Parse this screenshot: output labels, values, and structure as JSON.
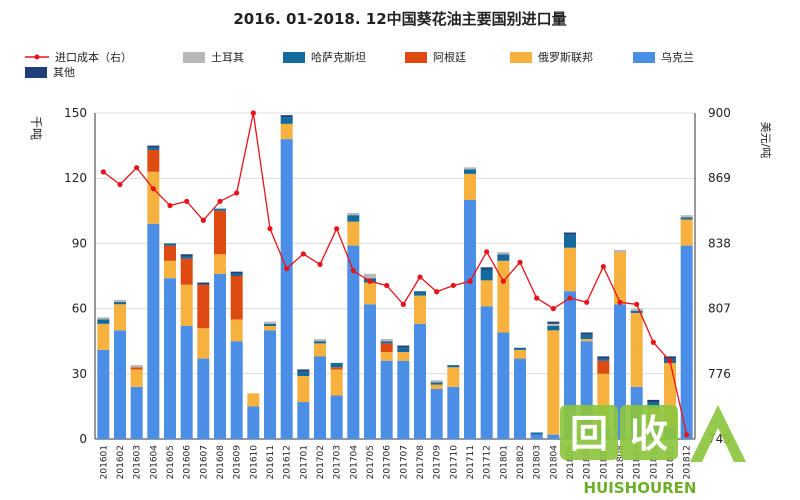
{
  "chart_data": {
    "type": "bar",
    "title": "2016. 01-2018. 12中国葵花油主要国别进口量",
    "ylabel_left": "千吨",
    "ylabel_right": "美元/吨",
    "ylim_left": [
      0,
      150
    ],
    "ylim_right": [
      745,
      900
    ],
    "yticks_left": [
      0,
      30,
      60,
      90,
      120,
      150
    ],
    "yticks_right": [
      745,
      776,
      807,
      838,
      869,
      900
    ],
    "categories": [
      "201601",
      "201602",
      "201603",
      "201604",
      "201605",
      "201606",
      "201607",
      "201608",
      "201609",
      "201610",
      "201611",
      "201612",
      "201701",
      "201702",
      "201703",
      "201704",
      "201705",
      "201706",
      "201707",
      "201708",
      "201709",
      "201710",
      "201711",
      "201712",
      "201801",
      "201802",
      "201803",
      "201804",
      "201805",
      "201806",
      "201807",
      "201808",
      "201809",
      "201810",
      "201811",
      "201812"
    ],
    "stack_order": [
      "乌克兰",
      "俄罗斯联邦",
      "阿根廷",
      "哈萨克斯坦",
      "土耳其",
      "其他"
    ],
    "series": [
      {
        "name": "乌克兰",
        "color": "#4a8ee6",
        "values": [
          41,
          50,
          24,
          99,
          74,
          52,
          37,
          76,
          45,
          15,
          50,
          138,
          17,
          38,
          20,
          89,
          62,
          36,
          36,
          53,
          23,
          24,
          110,
          61,
          49,
          37,
          2,
          2,
          68,
          45,
          5,
          62,
          24,
          6,
          5,
          89
        ]
      },
      {
        "name": "俄罗斯联邦",
        "color": "#f7b13f",
        "values": [
          12,
          12,
          8,
          24,
          8,
          19,
          14,
          9,
          10,
          6,
          2,
          7,
          12,
          6,
          12,
          11,
          10,
          4,
          4,
          13,
          2,
          9,
          12,
          12,
          33,
          4,
          0,
          48,
          20,
          1,
          25,
          24,
          34,
          8,
          30,
          12
        ]
      },
      {
        "name": "阿根廷",
        "color": "#dd4a12",
        "values": [
          0,
          0,
          1,
          10,
          7,
          12,
          20,
          20,
          20,
          0,
          0,
          0,
          0,
          0,
          1,
          0,
          0,
          4,
          0,
          0,
          0,
          0,
          0,
          0,
          0,
          0,
          0,
          0,
          0,
          0,
          6,
          0,
          0,
          0,
          0,
          0
        ]
      },
      {
        "name": "哈萨克斯坦",
        "color": "#14699d",
        "values": [
          2,
          1,
          0,
          1,
          1,
          1,
          0,
          1,
          1,
          0,
          1,
          3,
          2,
          1,
          2,
          3,
          2,
          1,
          2,
          2,
          1,
          1,
          2,
          5,
          3,
          1,
          1,
          2,
          6,
          2,
          1,
          0,
          1,
          3,
          2,
          1
        ]
      },
      {
        "name": "土耳其",
        "color": "#b8b8b8",
        "values": [
          1,
          1,
          1,
          0,
          0,
          0,
          0,
          0,
          0,
          0,
          1,
          0,
          0,
          1,
          0,
          1,
          2,
          1,
          0,
          0,
          1,
          0,
          1,
          0,
          1,
          0,
          0,
          1,
          0,
          0,
          0,
          1,
          1,
          0,
          0,
          1
        ]
      },
      {
        "name": "其他",
        "color": "#1f3f7a",
        "values": [
          0,
          0,
          0,
          1,
          0,
          1,
          1,
          0,
          1,
          0,
          0,
          1,
          1,
          0,
          0,
          0,
          0,
          0,
          1,
          0,
          0,
          0,
          0,
          1,
          0,
          0,
          0,
          1,
          1,
          1,
          1,
          0,
          0,
          1,
          1,
          0
        ]
      }
    ],
    "line": {
      "name": "进口成本（右）",
      "color": "#e8131a",
      "values": [
        872,
        866,
        874,
        864,
        856,
        858,
        849,
        858,
        862,
        900,
        845,
        826,
        833,
        828,
        845,
        825,
        820,
        818,
        809,
        822,
        815,
        818,
        820,
        834,
        820,
        829,
        812,
        807,
        812,
        810,
        827,
        810,
        809,
        791,
        782,
        747
      ]
    },
    "legend_position": "top",
    "watermark_brand": "HUISHOUREN",
    "watermark_glyphs": "回收"
  }
}
